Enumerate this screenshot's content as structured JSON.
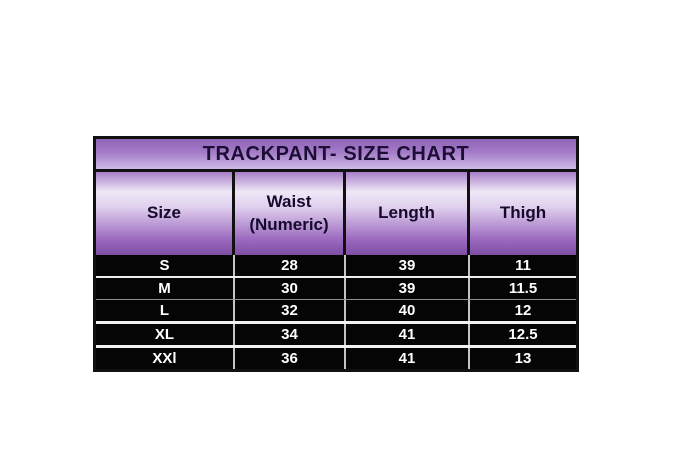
{
  "title": "TRACKPANT- SIZE CHART",
  "chart_data": {
    "type": "table",
    "title": "TRACKPANT- SIZE CHART",
    "columns": [
      "Size",
      "Waist (Numeric)",
      "Length",
      "Thigh"
    ],
    "rows": [
      [
        "S",
        "28",
        "39",
        "11"
      ],
      [
        "M",
        "30",
        "39",
        "11.5"
      ],
      [
        "L",
        "32",
        "40",
        "12"
      ],
      [
        "XL",
        "34",
        "41",
        "12.5"
      ],
      [
        "XXl",
        "36",
        "41",
        "13"
      ]
    ],
    "layout": "title bar on top, header row, 5 data rows; grid on"
  },
  "colors": {
    "title_gradient_top": "#8f63b8",
    "title_gradient_bottom": "#cfbbe6",
    "header_gradient_light": "#efe8f7",
    "header_gradient_dark": "#7f4da3",
    "border": "#111111",
    "data_background": "#050505",
    "data_text": "#ffffff",
    "heading_text": "#1c0e36",
    "page_background": "#ffffff"
  }
}
